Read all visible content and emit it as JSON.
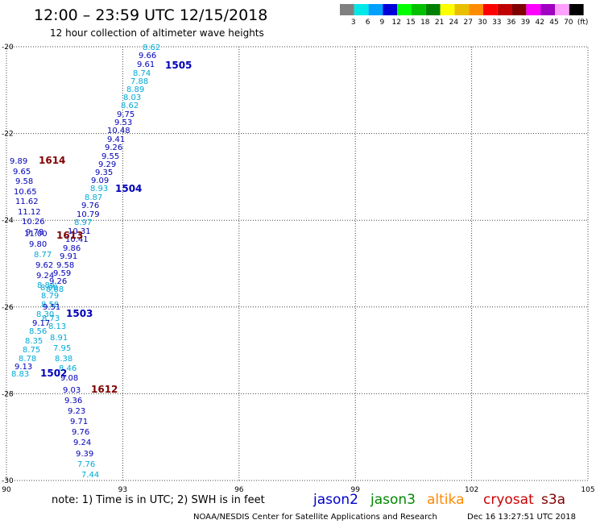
{
  "header": {
    "title": "12:00 – 23:59 UTC 12/15/2018",
    "subtitle": "12 hour collection of altimeter wave heights"
  },
  "legend": {
    "labels": [
      "3",
      "6",
      "9",
      "12",
      "15",
      "18",
      "21",
      "24",
      "27",
      "30",
      "33",
      "36",
      "39",
      "42",
      "45",
      "70",
      "(ft)"
    ],
    "colors": [
      "#808080",
      "#00e8e8",
      "#00a0ff",
      "#0000d8",
      "#00ff00",
      "#00c000",
      "#008000",
      "#ffff00",
      "#e8c000",
      "#ff8c00",
      "#ff0000",
      "#c00000",
      "#800000",
      "#ff00ff",
      "#a000c0",
      "#ffa0ff",
      "#000000"
    ]
  },
  "axes": {
    "x_labels": [
      "90",
      "93",
      "96",
      "99",
      "102",
      "105"
    ],
    "y_labels": [
      "-20",
      "-22",
      "-24",
      "-26",
      "-28",
      "-30"
    ]
  },
  "observations": [
    {
      "text": "8.62",
      "c": "#00aad8"
    },
    {
      "text": "9.66",
      "c": "#0000b8"
    },
    {
      "text": "9.61",
      "c": "#0000b8"
    },
    {
      "text": "8.74",
      "c": "#00aad8"
    },
    {
      "text": "7.88",
      "c": "#00aad8"
    },
    {
      "text": "8.89",
      "c": "#00aad8"
    },
    {
      "text": "8.03",
      "c": "#00aad8"
    },
    {
      "text": "8.62",
      "c": "#00aad8"
    },
    {
      "text": "9.75",
      "c": "#0000b8"
    },
    {
      "text": "9.53",
      "c": "#0000b8"
    },
    {
      "text": "10.48",
      "c": "#0000b8"
    },
    {
      "text": "9.41",
      "c": "#0000b8"
    },
    {
      "text": "9.26",
      "c": "#0000b8"
    },
    {
      "text": "9.55",
      "c": "#0000b8"
    },
    {
      "text": "9.29",
      "c": "#0000b8"
    },
    {
      "text": "9.35",
      "c": "#0000b8"
    },
    {
      "text": "9.09",
      "c": "#0000b8"
    },
    {
      "text": "8.93",
      "c": "#00aad8"
    },
    {
      "text": "8.87",
      "c": "#00aad8"
    },
    {
      "text": "9.76",
      "c": "#0000b8"
    },
    {
      "text": "10.79",
      "c": "#0000b8"
    },
    {
      "text": "8.97",
      "c": "#00aad8"
    },
    {
      "text": "10.31",
      "c": "#0000b8"
    },
    {
      "text": "10.41",
      "c": "#0000b8"
    },
    {
      "text": "9.86",
      "c": "#0000b8"
    },
    {
      "text": "9.91",
      "c": "#0000b8"
    },
    {
      "text": "9.58",
      "c": "#0000b8"
    },
    {
      "text": "9.59",
      "c": "#0000b8"
    },
    {
      "text": "9.26",
      "c": "#0000b8"
    },
    {
      "text": "8.88",
      "c": "#00aad8"
    },
    {
      "text": "8.30",
      "c": "#00aad8"
    },
    {
      "text": "8.73",
      "c": "#00aad8"
    },
    {
      "text": "8.13",
      "c": "#00aad8"
    },
    {
      "text": "8.91",
      "c": "#00aad8"
    },
    {
      "text": "7.95",
      "c": "#00aad8"
    },
    {
      "text": "8.38",
      "c": "#00aad8"
    },
    {
      "text": "8.46",
      "c": "#00aad8"
    },
    {
      "text": "9.08",
      "c": "#0000b8"
    },
    {
      "text": "9.03",
      "c": "#0000b8"
    },
    {
      "text": "9.36",
      "c": "#0000b8"
    },
    {
      "text": "9.23",
      "c": "#0000b8"
    },
    {
      "text": "9.71",
      "c": "#0000b8"
    },
    {
      "text": "9.76",
      "c": "#0000b8"
    },
    {
      "text": "9.24",
      "c": "#0000b8"
    },
    {
      "text": "9.39",
      "c": "#0000b8"
    },
    {
      "text": "7.76",
      "c": "#00aad8"
    },
    {
      "text": "7.44",
      "c": "#00aad8"
    },
    {
      "text": "9.89",
      "c": "#0000b8"
    },
    {
      "text": "9.65",
      "c": "#0000b8"
    },
    {
      "text": "9.58",
      "c": "#0000b8"
    },
    {
      "text": "10.65",
      "c": "#0000b8"
    },
    {
      "text": "11.62",
      "c": "#0000b8"
    },
    {
      "text": "11.12",
      "c": "#0000b8"
    },
    {
      "text": "10.26",
      "c": "#0000b8"
    },
    {
      "text": "9.78",
      "c": "#0000b8"
    },
    {
      "text": "11.00",
      "c": "#0000b8"
    },
    {
      "text": "9.80",
      "c": "#0000b8"
    },
    {
      "text": "8.77",
      "c": "#00aad8"
    },
    {
      "text": "9.62",
      "c": "#0000b8"
    },
    {
      "text": "9.24",
      "c": "#0000b8"
    },
    {
      "text": "8.84",
      "c": "#00aad8"
    },
    {
      "text": "8.98",
      "c": "#00aad8"
    },
    {
      "text": "8.79",
      "c": "#00aad8"
    },
    {
      "text": "8.58",
      "c": "#00aad8"
    },
    {
      "text": "9.51",
      "c": "#0000b8"
    },
    {
      "text": "9.17",
      "c": "#0000b8"
    },
    {
      "text": "8.56",
      "c": "#00aad8"
    },
    {
      "text": "8.35",
      "c": "#00aad8"
    },
    {
      "text": "8.75",
      "c": "#00aad8"
    },
    {
      "text": "8.78",
      "c": "#00aad8"
    },
    {
      "text": "9.13",
      "c": "#0000b8"
    },
    {
      "text": "8.83",
      "c": "#00aad8"
    }
  ],
  "passes": [
    {
      "text": "1505",
      "c": "#0000b8"
    },
    {
      "text": "1504",
      "c": "#0000b8"
    },
    {
      "text": "1503",
      "c": "#0000b8"
    },
    {
      "text": "1502",
      "c": "#0000b8"
    },
    {
      "text": "1614",
      "c": "#800000"
    },
    {
      "text": "1613",
      "c": "#800000"
    },
    {
      "text": "1612",
      "c": "#800000"
    }
  ],
  "footer": {
    "note": "note:  1) Time is in UTC;  2) SWH is in feet",
    "satellites": [
      {
        "name": "jason2",
        "color": "#0000cc"
      },
      {
        "name": "jason3",
        "color": "#008800"
      },
      {
        "name": "altika",
        "color": "#ff8800"
      },
      {
        "name": "cryosat",
        "color": "#cc0000"
      },
      {
        "name": "s3a",
        "color": "#800000"
      }
    ],
    "credit": "NOAA/NESDIS Center for Satellite Applications and Research",
    "timestamp": "Dec 16 13:27:51 UTC 2018"
  }
}
